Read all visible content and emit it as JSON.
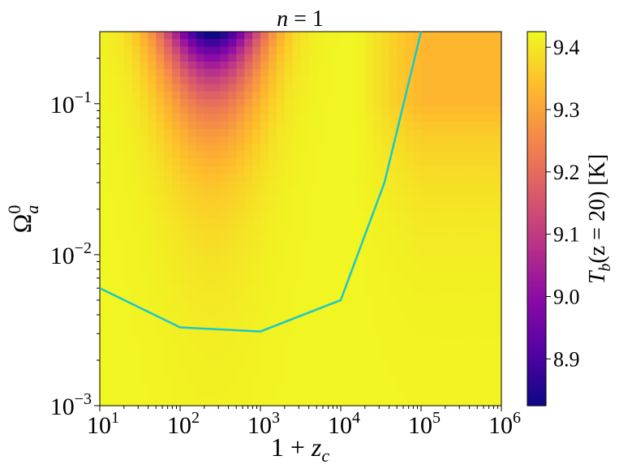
{
  "chart_data": {
    "type": "heatmap",
    "title": "n = 1",
    "title_parts": {
      "var": "n",
      "rest": " = 1"
    },
    "xlabel": "1 + z_c",
    "xlabel_parts": {
      "lead": "1 + ",
      "var": "z",
      "sub": "c"
    },
    "ylabel": "Ω_a^0",
    "ylabel_parts": {
      "sym": "Ω",
      "sup": "0",
      "sub": "a"
    },
    "colorbar_label": "T_b(z = 20) [K]",
    "colorbar_parts": {
      "T": "T",
      "b": "b",
      "rest": "(z = 20) [K]"
    },
    "x_scale": "log",
    "y_scale": "log",
    "xlim": [
      10,
      1000000
    ],
    "ylim": [
      0.001,
      0.3
    ],
    "x_ticks": [
      {
        "value": 10,
        "base": "10",
        "exp": "1"
      },
      {
        "value": 100,
        "base": "10",
        "exp": "2"
      },
      {
        "value": 1000,
        "base": "10",
        "exp": "3"
      },
      {
        "value": 10000,
        "base": "10",
        "exp": "4"
      },
      {
        "value": 100000,
        "base": "10",
        "exp": "5"
      },
      {
        "value": 1000000,
        "base": "10",
        "exp": "6"
      }
    ],
    "y_ticks": [
      {
        "value": 0.001,
        "base": "10",
        "exp": "−3"
      },
      {
        "value": 0.01,
        "base": "10",
        "exp": "−2"
      },
      {
        "value": 0.1,
        "base": "10",
        "exp": "−1"
      }
    ],
    "colorbar": {
      "cmap": "plasma",
      "range": [
        8.825,
        9.425
      ],
      "ticks": [
        "8.9",
        "9.0",
        "9.1",
        "9.2",
        "9.3",
        "9.4"
      ]
    },
    "heatmap_model": {
      "min_location": {
        "x": 250,
        "y": 0.3
      },
      "min_value": 8.83,
      "background_value": 9.42,
      "grid": {
        "nx": 50,
        "ny": 50
      }
    },
    "line": {
      "color": "#1cc7c9",
      "x": [
        10,
        100,
        1000,
        10000,
        35000,
        100000
      ],
      "y": [
        0.006,
        0.0033,
        0.0031,
        0.005,
        0.03,
        0.3
      ]
    }
  }
}
